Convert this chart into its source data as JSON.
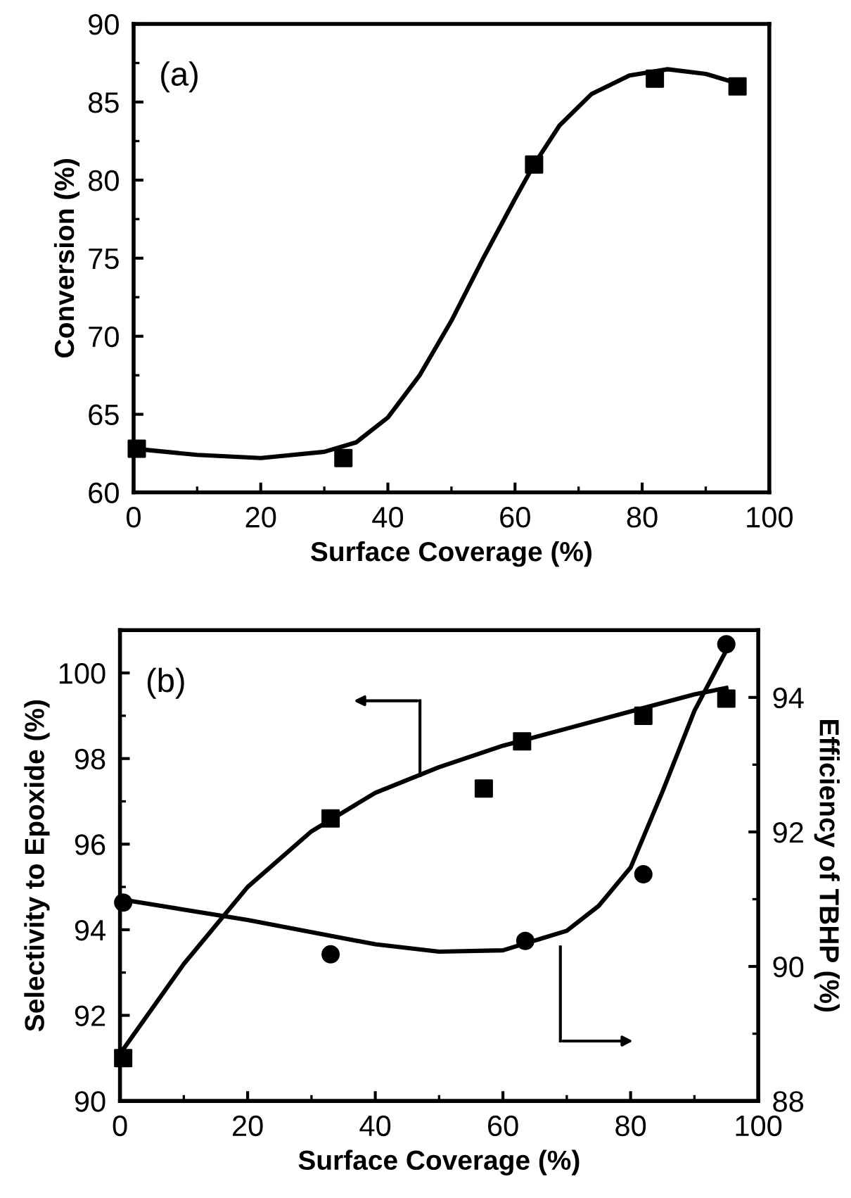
{
  "chart_data": [
    {
      "type": "scatter",
      "xlabel": "Surface Coverage (%)",
      "ylabel": "Conversion (%)",
      "annotations": [
        "(a)"
      ],
      "xlim": [
        0,
        100
      ],
      "xticks": [
        0,
        20,
        40,
        60,
        80,
        100
      ],
      "ylim": [
        60,
        90
      ],
      "yticks": [
        60,
        65,
        70,
        75,
        80,
        85,
        90
      ],
      "grid": false,
      "legend": false,
      "series": [
        {
          "marker": "square",
          "color": "#000000",
          "x": [
            0.5,
            33,
            63,
            82,
            95
          ],
          "values": [
            62.8,
            62.2,
            81,
            86.5,
            86
          ]
        },
        {
          "type": "line",
          "marker": "none",
          "line_style": "solid",
          "color": "#000000",
          "x": [
            0,
            10,
            20,
            30,
            35,
            40,
            45,
            50,
            55,
            60,
            63,
            67,
            72,
            78,
            84,
            90,
            95
          ],
          "values": [
            62.8,
            62.4,
            62.2,
            62.6,
            63.2,
            64.8,
            67.5,
            71,
            75,
            78.8,
            81,
            83.5,
            85.5,
            86.7,
            87.1,
            86.8,
            86.2
          ]
        }
      ]
    },
    {
      "type": "scatter",
      "xlabel": "Surface Coverage (%)",
      "ylabel": "Selectivity to Epoxide (%)",
      "y2label": "Efficiency of TBHP (%)",
      "annotations": [
        "(b)"
      ],
      "xlim": [
        0,
        100
      ],
      "xticks": [
        0,
        20,
        40,
        60,
        80,
        100
      ],
      "ylim": [
        90,
        101
      ],
      "yticks": [
        90,
        92,
        94,
        96,
        98,
        100
      ],
      "y2lim": [
        88,
        95
      ],
      "y2ticks": [
        88,
        90,
        92,
        94
      ],
      "grid": false,
      "legend": false,
      "series": [
        {
          "marker": "square",
          "color": "#000000",
          "x": [
            0.5,
            33,
            57,
            63,
            82,
            95
          ],
          "values": [
            91.0,
            96.6,
            97.3,
            98.4,
            99.0,
            99.4
          ]
        },
        {
          "type": "line",
          "marker": "none",
          "line_style": "solid",
          "color": "#000000",
          "x": [
            0,
            10,
            20,
            30,
            40,
            50,
            60,
            70,
            80,
            90,
            95
          ],
          "values": [
            91.1,
            93.2,
            95.0,
            96.3,
            97.2,
            97.8,
            98.3,
            98.7,
            99.1,
            99.5,
            99.65
          ]
        },
        {
          "marker": "circle",
          "color": "#000000",
          "axis": "y2",
          "x": [
            0.5,
            33,
            63.5,
            82,
            95
          ],
          "values": [
            90.95,
            90.18,
            90.38,
            91.37,
            94.79
          ]
        },
        {
          "type": "line",
          "marker": "none",
          "line_style": "solid",
          "color": "#000000",
          "axis": "y2",
          "x": [
            0,
            20,
            40,
            50,
            60,
            70,
            75,
            80,
            85,
            90,
            95
          ],
          "values": [
            91.0,
            90.69,
            90.33,
            90.22,
            90.24,
            90.53,
            90.9,
            91.47,
            92.6,
            93.8,
            94.7
          ]
        }
      ]
    }
  ]
}
